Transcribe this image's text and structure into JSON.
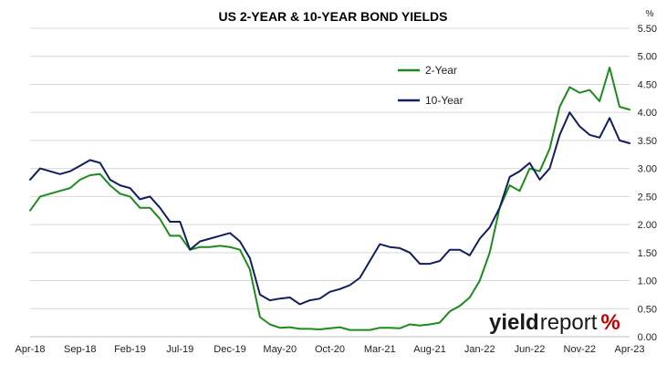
{
  "chart_data": {
    "type": "line",
    "title": "US 2-YEAR & 10-YEAR BOND YIELDS",
    "y_unit_label": "%",
    "ylim": [
      0,
      5.5
    ],
    "y_ticks": [
      "0.00",
      "0.50",
      "1.00",
      "1.50",
      "2.00",
      "2.50",
      "3.00",
      "3.50",
      "4.00",
      "4.50",
      "5.00",
      "5.50"
    ],
    "x_ticks": [
      "Apr-18",
      "Sep-18",
      "Feb-19",
      "Jul-19",
      "Dec-19",
      "May-20",
      "Oct-20",
      "Mar-21",
      "Aug-21",
      "Jan-22",
      "Jun-22",
      "Nov-22",
      "Apr-23"
    ],
    "grid": "horizontal",
    "legend_position": "top-right",
    "colors": {
      "y2": "#1e8a1e",
      "y10": "#10205e",
      "grid": "#d9d9d9"
    },
    "x": [
      "2018-04",
      "2018-05",
      "2018-06",
      "2018-07",
      "2018-08",
      "2018-09",
      "2018-10",
      "2018-11",
      "2018-12",
      "2019-01",
      "2019-02",
      "2019-03",
      "2019-04",
      "2019-05",
      "2019-06",
      "2019-07",
      "2019-08",
      "2019-09",
      "2019-10",
      "2019-11",
      "2019-12",
      "2020-01",
      "2020-02",
      "2020-03",
      "2020-04",
      "2020-05",
      "2020-06",
      "2020-07",
      "2020-08",
      "2020-09",
      "2020-10",
      "2020-11",
      "2020-12",
      "2021-01",
      "2021-02",
      "2021-03",
      "2021-04",
      "2021-05",
      "2021-06",
      "2021-07",
      "2021-08",
      "2021-09",
      "2021-10",
      "2021-11",
      "2021-12",
      "2022-01",
      "2022-02",
      "2022-03",
      "2022-04",
      "2022-05",
      "2022-06",
      "2022-07",
      "2022-08",
      "2022-09",
      "2022-10",
      "2022-11",
      "2022-12",
      "2023-01",
      "2023-02",
      "2023-03",
      "2023-04"
    ],
    "series": [
      {
        "name": "2-Year",
        "values": [
          2.25,
          2.5,
          2.55,
          2.6,
          2.65,
          2.8,
          2.88,
          2.9,
          2.7,
          2.55,
          2.5,
          2.3,
          2.3,
          2.1,
          1.8,
          1.8,
          1.55,
          1.6,
          1.6,
          1.62,
          1.6,
          1.55,
          1.2,
          0.35,
          0.22,
          0.16,
          0.17,
          0.14,
          0.14,
          0.13,
          0.15,
          0.17,
          0.12,
          0.12,
          0.12,
          0.16,
          0.16,
          0.15,
          0.22,
          0.2,
          0.22,
          0.25,
          0.45,
          0.55,
          0.7,
          1.0,
          1.5,
          2.3,
          2.7,
          2.6,
          3.0,
          2.95,
          3.35,
          4.1,
          4.45,
          4.35,
          4.4,
          4.2,
          4.8,
          4.1,
          4.05
        ]
      },
      {
        "name": "10-Year",
        "values": [
          2.8,
          3.0,
          2.95,
          2.9,
          2.95,
          3.05,
          3.15,
          3.1,
          2.8,
          2.7,
          2.65,
          2.45,
          2.5,
          2.3,
          2.05,
          2.05,
          1.55,
          1.7,
          1.75,
          1.8,
          1.85,
          1.7,
          1.4,
          0.75,
          0.65,
          0.68,
          0.7,
          0.58,
          0.65,
          0.68,
          0.8,
          0.85,
          0.92,
          1.05,
          1.35,
          1.65,
          1.6,
          1.58,
          1.5,
          1.3,
          1.3,
          1.35,
          1.55,
          1.55,
          1.45,
          1.75,
          1.95,
          2.3,
          2.85,
          2.95,
          3.1,
          2.8,
          3.0,
          3.6,
          4.0,
          3.75,
          3.6,
          3.55,
          3.9,
          3.5,
          3.45
        ]
      }
    ]
  },
  "watermark": {
    "part1": "yield",
    "part2": "report",
    "part3": "%"
  }
}
